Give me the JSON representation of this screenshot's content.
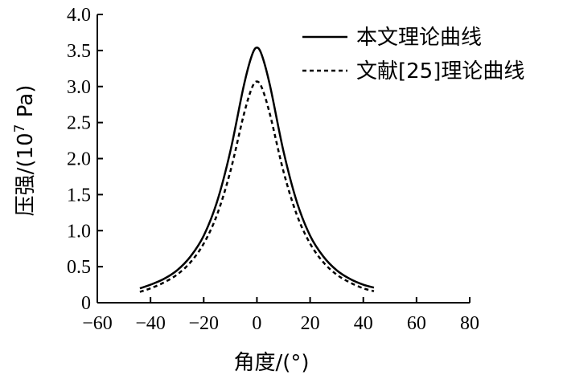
{
  "chart_data": {
    "type": "line",
    "xlabel": "角度/(°)",
    "ylabel_main": "压强/(10",
    "ylabel_sup": "7",
    "ylabel_tail": " Pa)",
    "xlim": [
      -60,
      80
    ],
    "ylim": [
      0,
      4.0
    ],
    "x_ticks": [
      -60,
      -40,
      -20,
      0,
      20,
      40,
      60,
      80
    ],
    "x_tick_labels": [
      "−60",
      "−40",
      "−20",
      "0",
      "20",
      "40",
      "60",
      "80"
    ],
    "y_ticks": [
      0,
      0.5,
      1.0,
      1.5,
      2.0,
      2.5,
      3.0,
      3.5,
      4.0
    ],
    "y_tick_labels": [
      "0",
      "0.5",
      "1.0",
      "1.5",
      "2.0",
      "2.5",
      "3.0",
      "3.5",
      "4.0"
    ],
    "legend_position": "top-right",
    "series": [
      {
        "name": "本文理论曲线",
        "style": "solid",
        "x": [
          -44,
          -40,
          -35,
          -30,
          -25,
          -20,
          -15,
          -10,
          -5,
          -2,
          0,
          2,
          5,
          10,
          15,
          20,
          25,
          30,
          35,
          40,
          44
        ],
        "y": [
          0.2,
          0.25,
          0.33,
          0.45,
          0.64,
          0.93,
          1.4,
          2.1,
          3.0,
          3.42,
          3.54,
          3.42,
          3.0,
          2.1,
          1.4,
          0.93,
          0.64,
          0.45,
          0.33,
          0.25,
          0.21
        ]
      },
      {
        "name": "文献[25]理论曲线",
        "style": "dashed",
        "x": [
          -44,
          -40,
          -35,
          -30,
          -25,
          -20,
          -15,
          -10,
          -5,
          -2,
          0,
          2,
          5,
          10,
          15,
          20,
          25,
          30,
          35,
          40,
          44
        ],
        "y": [
          0.15,
          0.2,
          0.28,
          0.39,
          0.56,
          0.82,
          1.22,
          1.82,
          2.6,
          2.97,
          3.07,
          2.97,
          2.6,
          1.82,
          1.22,
          0.82,
          0.56,
          0.39,
          0.28,
          0.2,
          0.16
        ]
      }
    ]
  }
}
